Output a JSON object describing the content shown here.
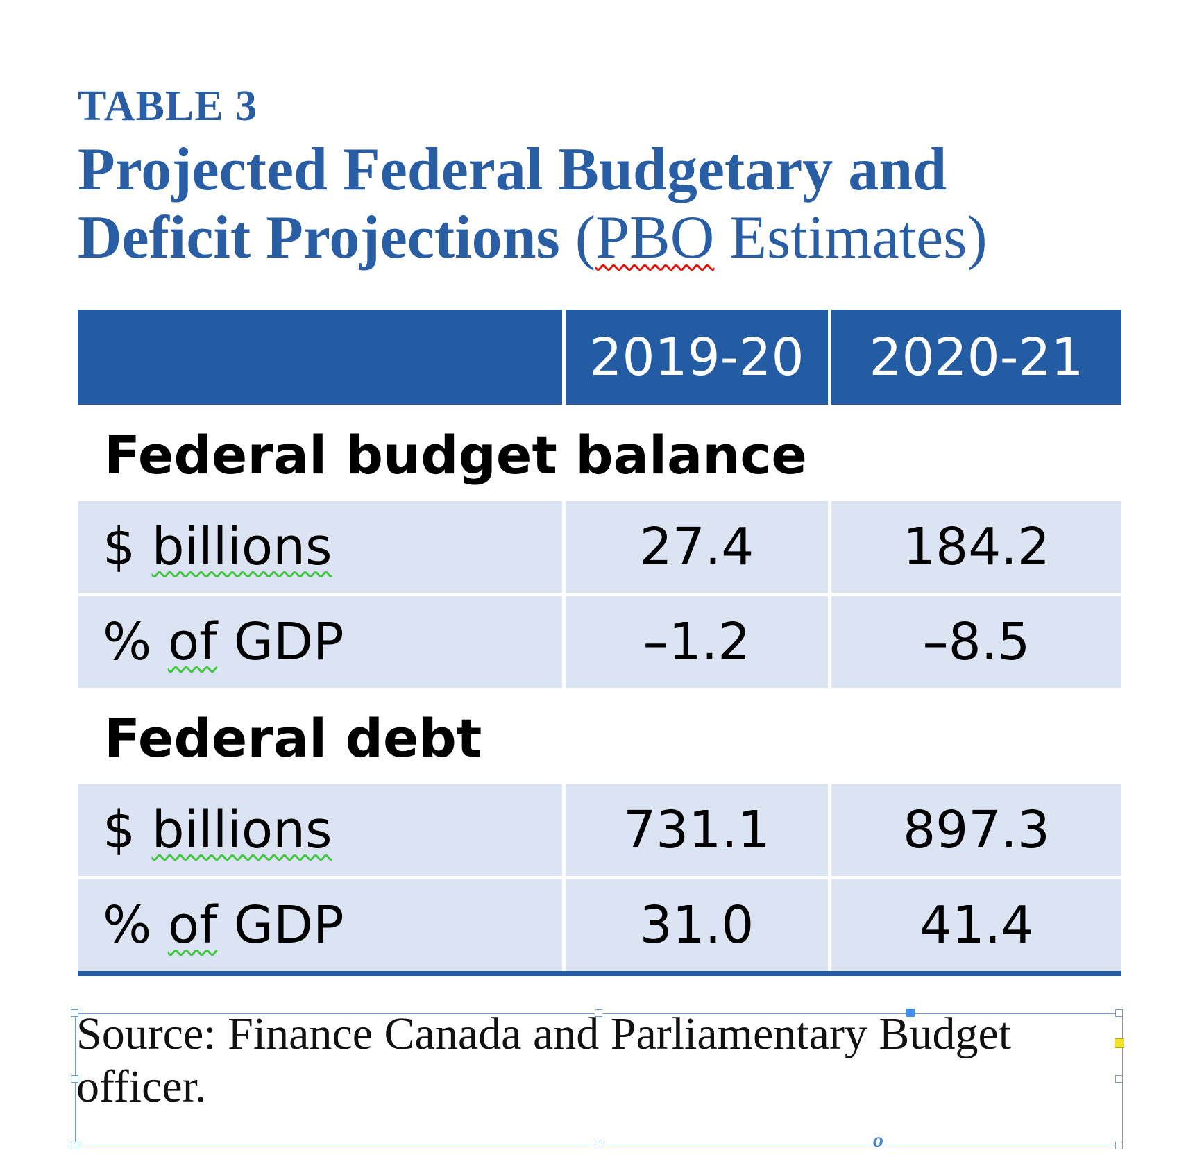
{
  "header": {
    "table_label": "TABLE 3",
    "title_line1": "Projected Federal Budgetary and",
    "title_line2_bold": "Deficit Projections",
    "title_line2_open": " (",
    "title_line2_abbr": "PBO",
    "title_line2_rest": " Estimates)"
  },
  "table": {
    "columns": [
      "",
      "2019-20",
      "2020-21"
    ],
    "sections": [
      {
        "heading": "Federal budget balance",
        "rows": [
          {
            "label_sym": "$ ",
            "label_word": "billions",
            "values": [
              "27.4",
              "184.2"
            ]
          },
          {
            "label_pre": "% ",
            "label_word": "of",
            "label_post": " GDP",
            "values": [
              "–1.2",
              "–8.5"
            ]
          }
        ]
      },
      {
        "heading": "Federal debt",
        "rows": [
          {
            "label_sym": "$ ",
            "label_word": "billions",
            "values": [
              "731.1",
              "897.3"
            ]
          },
          {
            "label_pre": "% ",
            "label_word": "of",
            "label_post": " GDP",
            "values": [
              "31.0",
              "41.4"
            ]
          }
        ]
      }
    ]
  },
  "source": {
    "text": "Source: Finance Canada and Parliamentary Budget officer.",
    "overflow_marker": "o"
  },
  "colors": {
    "accent_blue": "#245ca4",
    "row_fill": "#dce3f2",
    "frame_blue": "#6d9ed8",
    "spell_red": "#e3120b",
    "spell_green": "#3ec63e"
  }
}
